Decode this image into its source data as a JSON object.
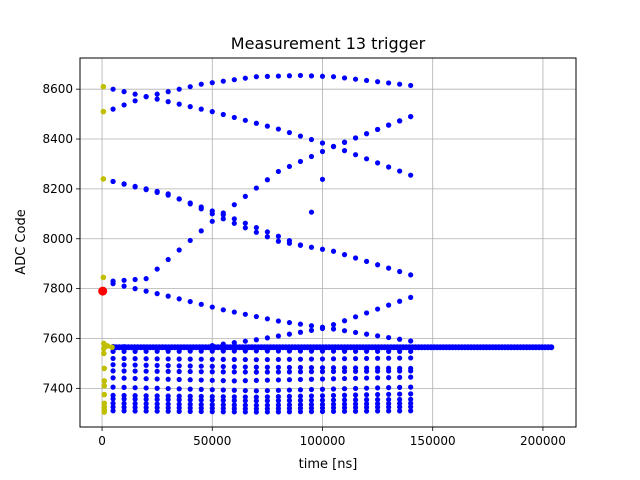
{
  "chart_data": {
    "type": "scatter",
    "title": "Measurement 13 trigger",
    "xlabel": "time [ns]",
    "ylabel": "ADC Code",
    "xlim": [
      -10000,
      215000
    ],
    "ylim": [
      7245,
      8725
    ],
    "grid": true,
    "xticks": [
      0,
      50000,
      100000,
      150000,
      200000
    ],
    "yticks": [
      7400,
      7600,
      7800,
      8000,
      8200,
      8400,
      8600
    ],
    "colors": {
      "main": "#0000ff",
      "early": "#bfbf00",
      "trigger": "#ff0000",
      "axis": "#000000",
      "grid": "#b0b0b0"
    },
    "trigger_point": {
      "x": 300,
      "y": 7790
    },
    "early_points": {
      "x": [
        600,
        600,
        600,
        600,
        800,
        800,
        800,
        1000,
        1000,
        1000,
        1000,
        1000,
        1000,
        1000,
        1000,
        2500,
        4500
      ],
      "y": [
        8610,
        8510,
        8240,
        7845,
        7580,
        7560,
        7540,
        7480,
        7430,
        7410,
        7375,
        7340,
        7325,
        7315,
        7305,
        7570,
        7565
      ]
    },
    "dense_baseline": {
      "x_start": 5000,
      "x_end": 205000,
      "x_step": 1400,
      "y": 7565
    },
    "curves": [
      {
        "name": "upper-arc",
        "x_step": 5000,
        "x": [
          5000,
          20000,
          45000,
          70000,
          90000,
          105000,
          140000
        ],
        "y": [
          8600,
          8570,
          8620,
          8650,
          8655,
          8650,
          8615
        ]
      },
      {
        "name": "upper-cross-down",
        "x_step": 5000,
        "x": [
          5000,
          20000,
          50000,
          80000,
          105000,
          140000
        ],
        "y": [
          8520,
          8570,
          8510,
          8440,
          8370,
          8255
        ]
      },
      {
        "name": "upper-cross-up",
        "x_step": 5000,
        "x": [
          5000,
          30000,
          60000,
          90000,
          105000,
          140000
        ],
        "y": [
          8230,
          8175,
          8080,
          7975,
          8370,
          8490
        ]
      },
      {
        "name": "mid-rise",
        "x_step": 5000,
        "x": [
          5000,
          20000,
          50000,
          80000,
          105000,
          140000
        ],
        "y": [
          7830,
          7840,
          8070,
          8270,
          8370,
          8490
        ]
      },
      {
        "name": "mid-fall",
        "x_step": 5000,
        "x": [
          5000,
          30000,
          55000,
          80000,
          105000,
          140000
        ],
        "y": [
          8230,
          8180,
          8080,
          7990,
          7950,
          7855
        ]
      },
      {
        "name": "lower-fall",
        "x_step": 5000,
        "x": [
          5000,
          30000,
          55000,
          80000,
          100000,
          140000
        ],
        "y": [
          7820,
          7770,
          7715,
          7670,
          7645,
          7590
        ]
      },
      {
        "name": "lower-rise",
        "x_step": 5000,
        "x": [
          5000,
          40000,
          70000,
          100000,
          140000
        ],
        "y": [
          7568,
          7560,
          7595,
          7640,
          7765
        ]
      },
      {
        "name": "band-7545",
        "x_step": 5000,
        "x": [
          5000,
          70000,
          140000
        ],
        "y": [
          7548,
          7550,
          7548
        ]
      },
      {
        "name": "band-7515",
        "x_step": 5000,
        "x": [
          5000,
          70000,
          140000
        ],
        "y": [
          7520,
          7515,
          7522
        ]
      },
      {
        "name": "band-7490",
        "x_step": 5000,
        "x": [
          5000,
          70000,
          140000
        ],
        "y": [
          7495,
          7485,
          7480
        ]
      },
      {
        "name": "band-7470",
        "x_step": 5000,
        "x": [
          5000,
          70000,
          140000
        ],
        "y": [
          7470,
          7465,
          7470
        ]
      },
      {
        "name": "band-7440",
        "x_step": 5000,
        "x": [
          5000,
          60000,
          140000
        ],
        "y": [
          7442,
          7430,
          7445
        ]
      },
      {
        "name": "band-7405",
        "x_step": 5000,
        "x": [
          5000,
          70000,
          140000
        ],
        "y": [
          7405,
          7390,
          7405
        ]
      },
      {
        "name": "band-7375",
        "x_step": 5000,
        "x": [
          5000,
          70000,
          140000
        ],
        "y": [
          7372,
          7365,
          7378
        ]
      },
      {
        "name": "band-7355",
        "x_step": 5000,
        "x": [
          5000,
          70000,
          140000
        ],
        "y": [
          7358,
          7350,
          7356
        ]
      },
      {
        "name": "band-7340",
        "x_step": 5000,
        "x": [
          5000,
          70000,
          140000
        ],
        "y": [
          7340,
          7332,
          7340
        ]
      },
      {
        "name": "band-7325",
        "x_step": 5000,
        "x": [
          5000,
          70000,
          140000
        ],
        "y": [
          7325,
          7318,
          7326
        ]
      },
      {
        "name": "band-7310",
        "x_step": 5000,
        "x": [
          5000,
          70000,
          140000
        ],
        "y": [
          7310,
          7305,
          7310
        ]
      }
    ]
  }
}
